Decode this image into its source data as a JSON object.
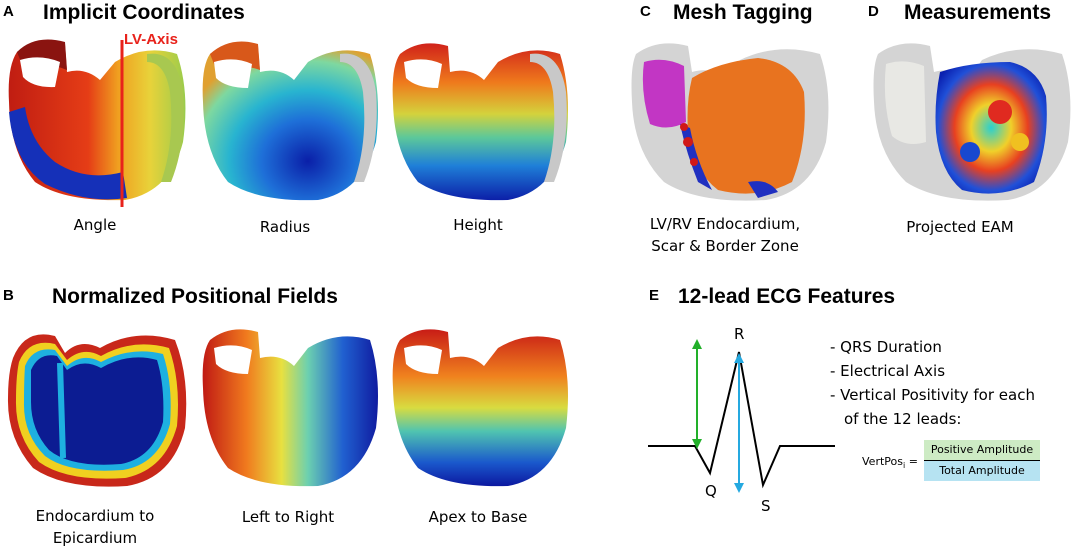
{
  "panel_a": {
    "letter": "A",
    "title": "Implicit Coordinates",
    "axis_label": "LV-Axis",
    "captions": [
      "Angle",
      "Radius",
      "Height"
    ]
  },
  "panel_b": {
    "letter": "B",
    "title": "Normalized Positional Fields",
    "captions": [
      "Endocardium to Epicardium",
      "Left to Right",
      "Apex to Base"
    ]
  },
  "panel_c": {
    "letter": "C",
    "title": "Mesh Tagging",
    "caption_line1": "LV/RV Endocardium,",
    "caption_line2": "Scar & Border Zone"
  },
  "panel_d": {
    "letter": "D",
    "title": "Measurements",
    "caption": "Projected EAM"
  },
  "panel_e": {
    "letter": "E",
    "title": "12-lead ECG Features",
    "wave_labels": {
      "r": "R",
      "q": "Q",
      "s": "S"
    },
    "features": [
      "- QRS Duration",
      "- Electrical Axis",
      "- Vertical Positivity for each",
      "of the 12 leads:"
    ],
    "formula": {
      "lhs": "VertPos",
      "sub": "i",
      "eq": "=",
      "numerator": "Positive Amplitude",
      "denominator": "Total Amplitude"
    },
    "colors": {
      "green_arrow": "#22b02a",
      "blue_arrow": "#25a9e0",
      "numerator_bg": "#cdebc4",
      "denominator_bg": "#b6e3f2"
    }
  },
  "colors": {
    "axis_red": "#e8221b",
    "mesh_grey": "#d4d4d4",
    "mesh_orange": "#e8731f",
    "mesh_magenta": "#c236c4"
  }
}
